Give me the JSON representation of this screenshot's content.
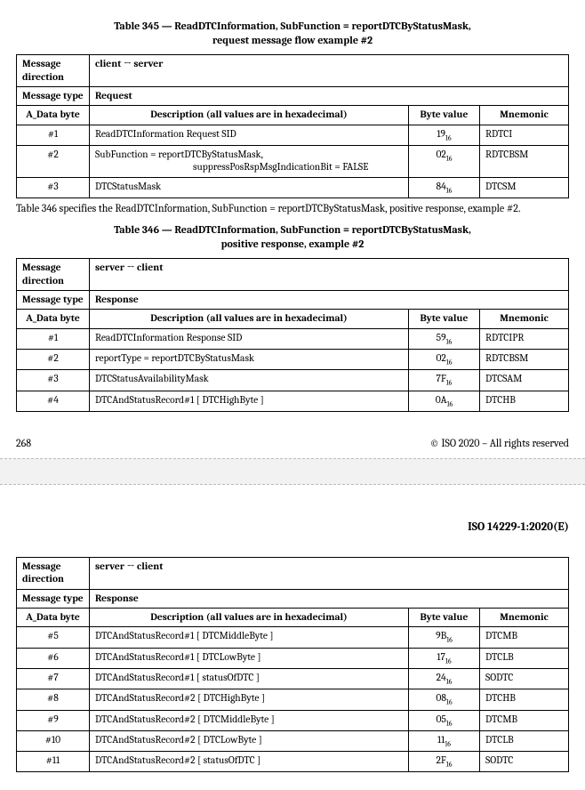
{
  "table345": {
    "title_line1": "Table 345 — ReadDTCInformation, SubFunction = reportDTCByStatusMask,",
    "title_line2": "request message flow example #2",
    "msg_direction_label": "Message direction",
    "msg_direction_value": "client → server",
    "msg_type_label": "Message type",
    "msg_type_value": "Request",
    "col_adata": "A_Data byte",
    "col_desc": "Description (all values are in hexadecimal)",
    "col_byte": "Byte value",
    "col_mnem": "Mnemonic",
    "rows": [
      {
        "adata": "#1",
        "desc": "ReadDTCInformation Request SID",
        "byte": "19",
        "mnem": "RDTCI"
      },
      {
        "adata": "#2",
        "desc": "SubFunction =      reportDTCByStatusMask,",
        "desc_sub": "suppressPosRspMsgIndicationBit = FALSE",
        "byte": "02",
        "mnem": "RDTCBSM"
      },
      {
        "adata": "#3",
        "desc": "DTCStatusMask",
        "byte": "84",
        "mnem": "DTCSM"
      }
    ]
  },
  "para346": "Table 346 specifies the ReadDTCInformation, SubFunction = reportDTCByStatusMask, positive response, example #2.",
  "table346": {
    "title_line1": "Table 346 — ReadDTCInformation, SubFunction = reportDTCByStatusMask,",
    "title_line2": "positive response, example #2",
    "msg_direction_label": "Message direction",
    "msg_direction_value": "server → client",
    "msg_type_label": "Message type",
    "msg_type_value": "Response",
    "col_adata": "A_Data byte",
    "col_desc": "Description (all values are in hexadecimal)",
    "col_byte": "Byte value",
    "col_mnem": "Mnemonic",
    "rows": [
      {
        "adata": "#1",
        "desc": "ReadDTCInformation Response SID",
        "byte": "59",
        "mnem": "RDTCIPR"
      },
      {
        "adata": "#2",
        "desc": "reportType = reportDTCByStatusMask",
        "byte": "02",
        "mnem": "RDTCBSM"
      },
      {
        "adata": "#3",
        "desc": "DTCStatusAvailabilityMask",
        "byte": "7F",
        "mnem": "DTCSAM"
      },
      {
        "adata": "#4",
        "desc": "DTCAndStatusRecord#1 [ DTCHighByte ]",
        "byte": "0A",
        "mnem": "DTCHB"
      }
    ]
  },
  "footer": {
    "page": "268",
    "copyright": "© ISO 2020 – All rights reserved"
  },
  "doc_id": "ISO 14229-1:2020(E)",
  "table346b": {
    "msg_direction_label": "Message direction",
    "msg_direction_value": "server → client",
    "msg_type_label": "Message type",
    "msg_type_value": "Response",
    "col_adata": "A_Data byte",
    "col_desc": "Description (all values are in hexadecimal)",
    "col_byte": "Byte value",
    "col_mnem": "Mnemonic",
    "rows": [
      {
        "adata": "#5",
        "desc": "DTCAndStatusRecord#1 [ DTCMiddleByte ]",
        "byte": "9B",
        "mnem": "DTCMB"
      },
      {
        "adata": "#6",
        "desc": "DTCAndStatusRecord#1 [ DTCLowByte ]",
        "byte": "17",
        "mnem": "DTCLB"
      },
      {
        "adata": "#7",
        "desc": "DTCAndStatusRecord#1 [ statusOfDTC ]",
        "byte": "24",
        "mnem": "SODTC"
      },
      {
        "adata": "#8",
        "desc": "DTCAndStatusRecord#2 [ DTCHighByte ]",
        "byte": "08",
        "mnem": "DTCHB"
      },
      {
        "adata": "#9",
        "desc": "DTCAndStatusRecord#2 [ DTCMiddleByte ]",
        "byte": "05",
        "mnem": "DTCMB"
      },
      {
        "adata": "#10",
        "desc": "DTCAndStatusRecord#2 [ DTCLowByte ]",
        "byte": "11",
        "mnem": "DTCLB"
      },
      {
        "adata": "#11",
        "desc": "DTCAndStatusRecord#2 [ statusOfDTC ]",
        "byte": "2F",
        "mnem": "SODTC"
      }
    ]
  },
  "hex_sub": "16"
}
